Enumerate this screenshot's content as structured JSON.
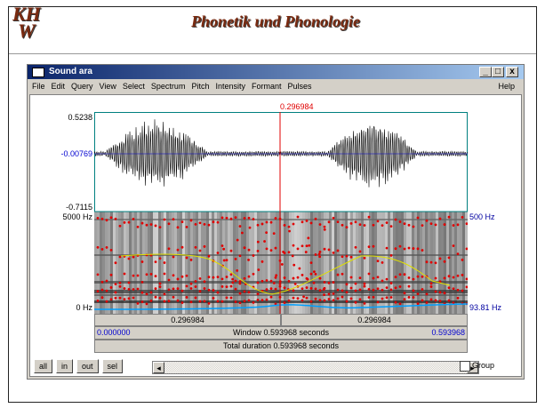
{
  "header": {
    "logo": [
      "KH",
      "W"
    ],
    "title": "Phonetik und Phonologie"
  },
  "window": {
    "title": "Sound ara",
    "menu": [
      "File",
      "Edit",
      "Query",
      "View",
      "Select",
      "Spectrum",
      "Pitch",
      "Intensity",
      "Formant",
      "Pulses"
    ],
    "help": "Help"
  },
  "waveform": {
    "cursor_time": "0.296984",
    "max": "0.5238",
    "zero": "-0.00769",
    "min": "-0.7115"
  },
  "spectrogram": {
    "top": "5000 Hz",
    "bottom": "0 Hz",
    "pitch_top": "500 Hz",
    "pitch_value": "93.81 Hz"
  },
  "time_bars": {
    "left": "0.296984",
    "right": "0.296984",
    "start": "0.000000",
    "window": "Window 0.593968 seconds",
    "end": "0.593968",
    "total": "Total duration 0.593968 seconds"
  },
  "buttons": [
    "all",
    "in",
    "out",
    "sel"
  ],
  "group": "Group"
}
